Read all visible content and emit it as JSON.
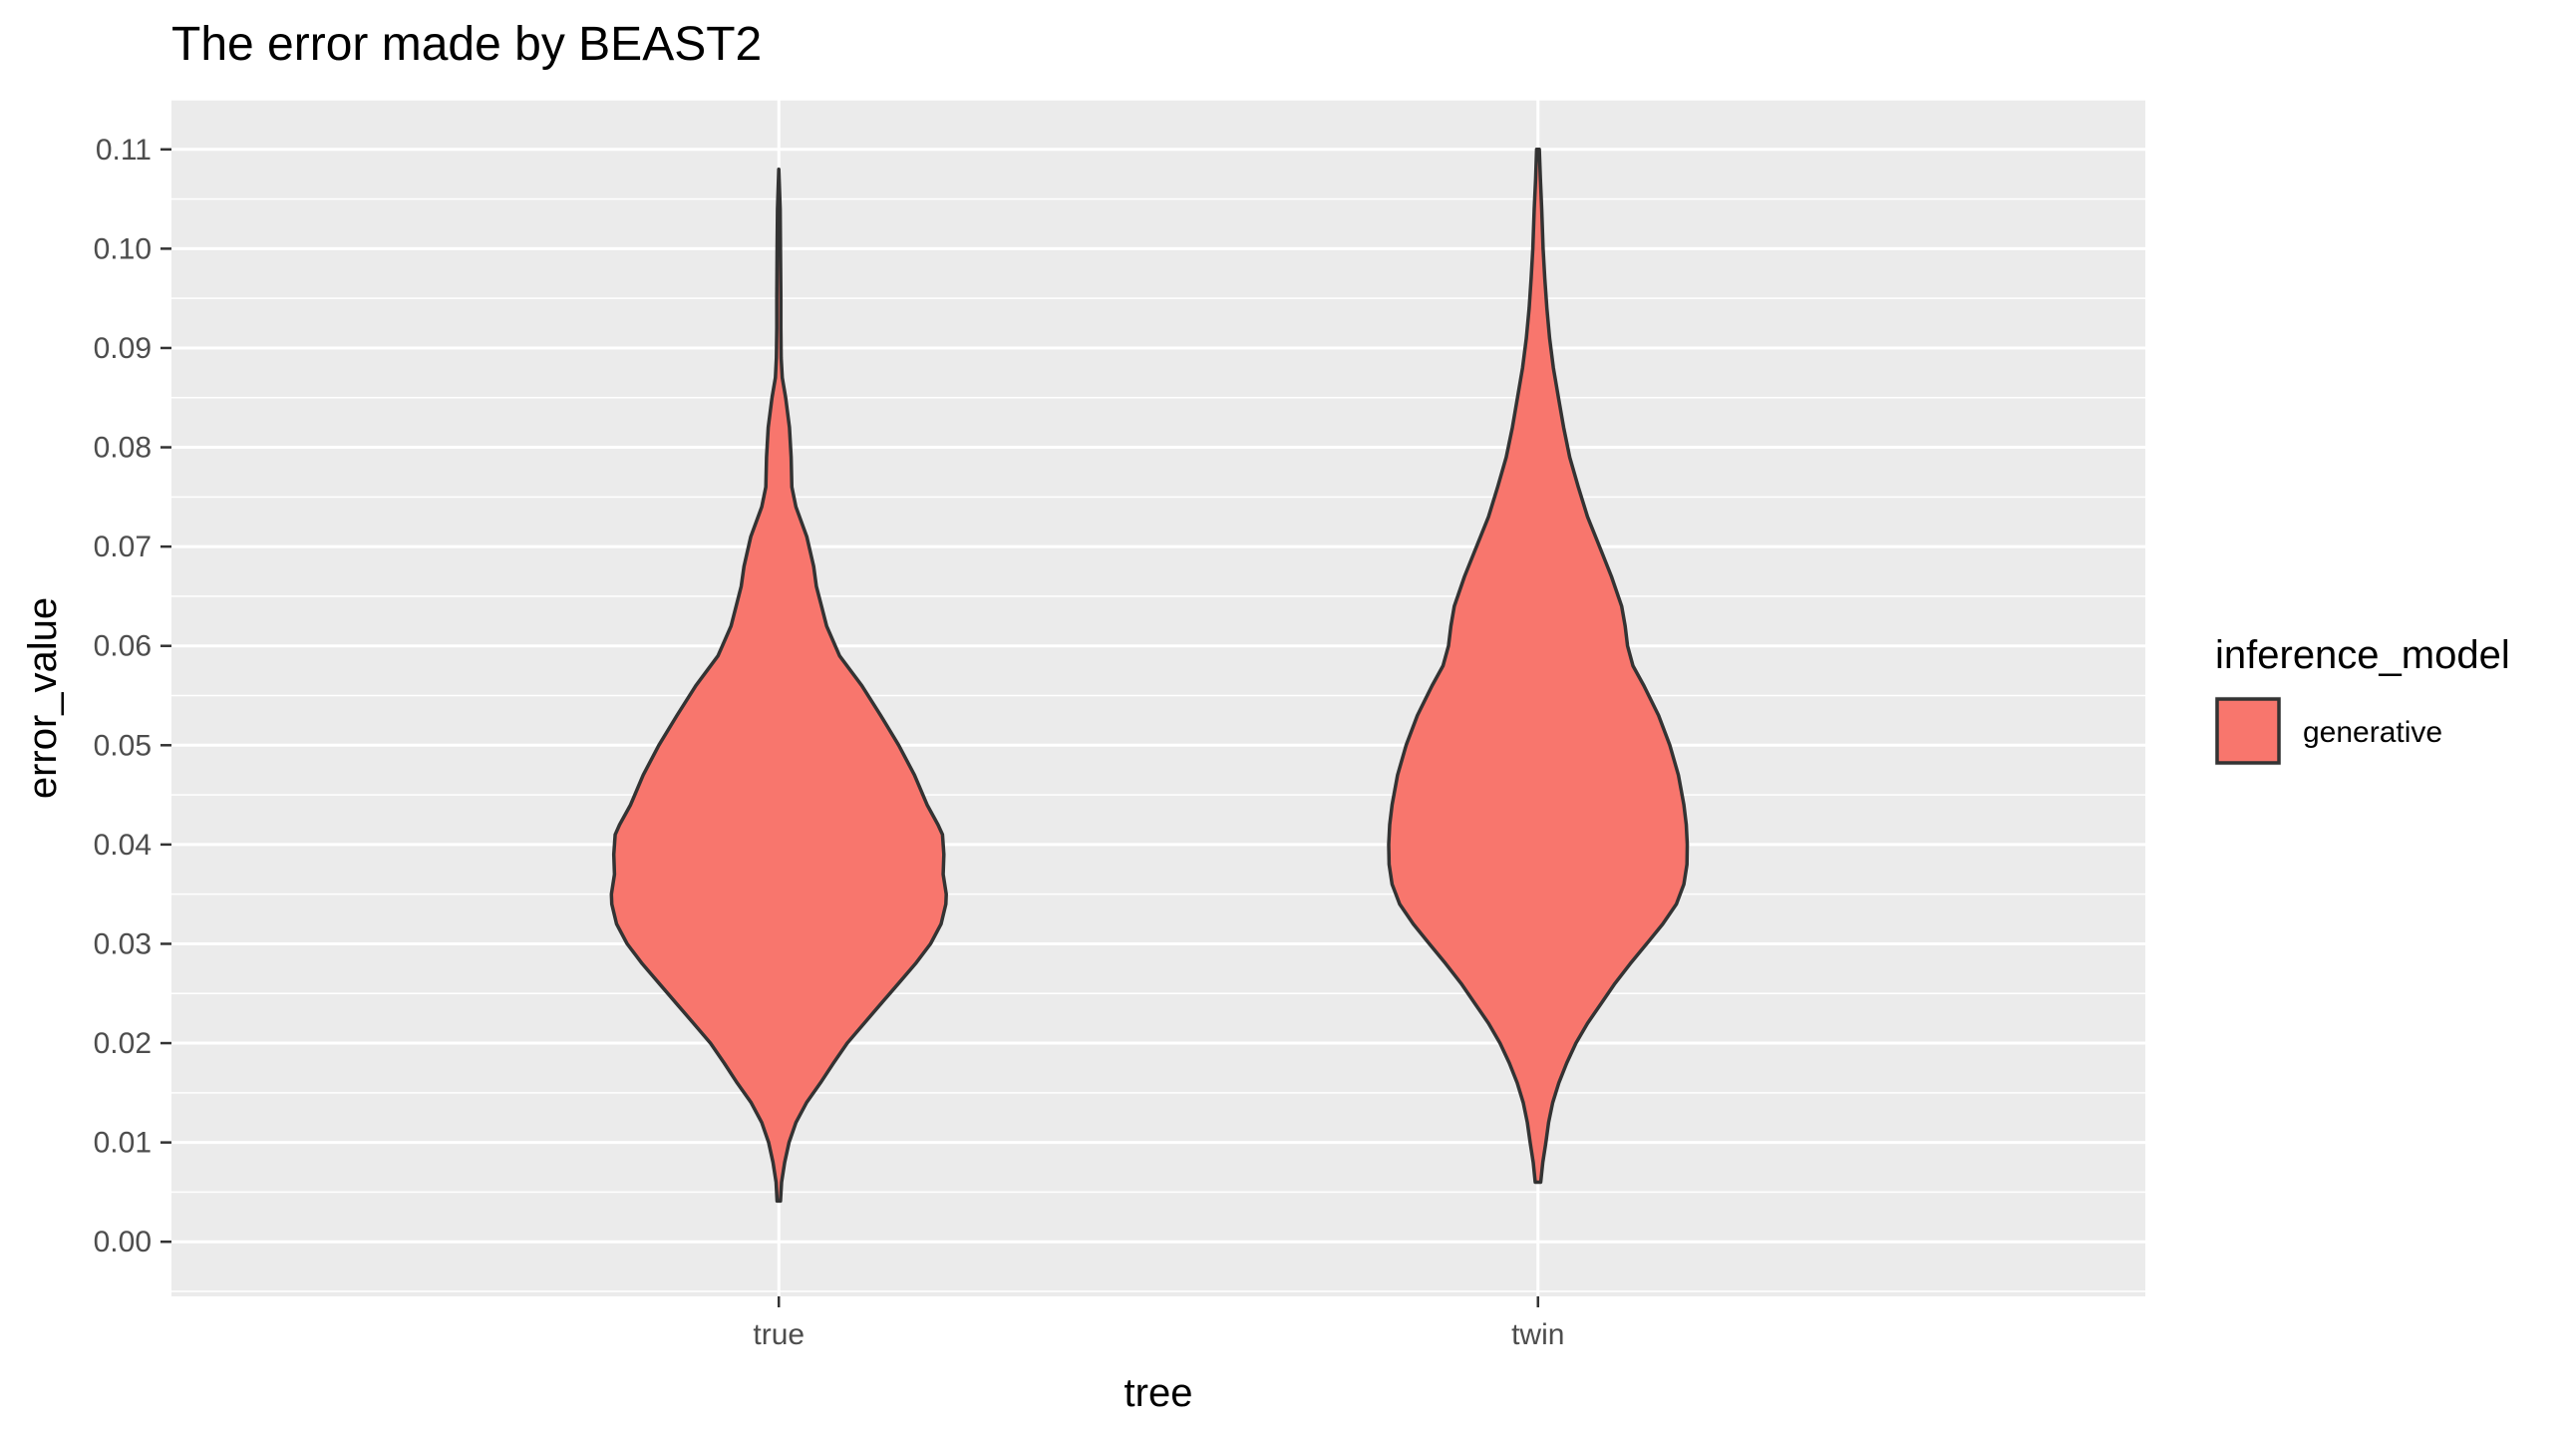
{
  "chart_data": {
    "type": "violin",
    "title": "The error made by BEAST2",
    "xlabel": "tree",
    "ylabel": "error_value",
    "categories": [
      "true",
      "twin"
    ],
    "ylim": [
      -0.0055,
      0.115
    ],
    "yticks": [
      0.0,
      0.01,
      0.02,
      0.03,
      0.04,
      0.05,
      0.06,
      0.07,
      0.08,
      0.09,
      0.1,
      0.11
    ],
    "ytick_labels": [
      "0.00",
      "0.01",
      "0.02",
      "0.03",
      "0.04",
      "0.05",
      "0.06",
      "0.07",
      "0.08",
      "0.09",
      "0.10",
      "0.11"
    ],
    "grid": true,
    "legend": {
      "title": "inference_model",
      "position": "right",
      "entries": [
        {
          "label": "generative",
          "color": "#F8766D"
        }
      ]
    },
    "series": [
      {
        "category": "true",
        "fill": "#F8766D",
        "outline": "#333333",
        "min": 0.0041,
        "max": 0.108,
        "density_profile": [
          [
            0.108,
            0.0
          ],
          [
            0.104,
            0.004
          ],
          [
            0.1,
            0.005
          ],
          [
            0.095,
            0.006
          ],
          [
            0.092,
            0.006
          ],
          [
            0.089,
            0.007
          ],
          [
            0.087,
            0.01
          ],
          [
            0.085,
            0.02
          ],
          [
            0.082,
            0.031
          ],
          [
            0.079,
            0.036
          ],
          [
            0.076,
            0.038
          ],
          [
            0.074,
            0.05
          ],
          [
            0.071,
            0.082
          ],
          [
            0.068,
            0.102
          ],
          [
            0.066,
            0.11
          ],
          [
            0.064,
            0.125
          ],
          [
            0.062,
            0.14
          ],
          [
            0.059,
            0.178
          ],
          [
            0.056,
            0.243
          ],
          [
            0.053,
            0.298
          ],
          [
            0.05,
            0.351
          ],
          [
            0.047,
            0.397
          ],
          [
            0.044,
            0.434
          ],
          [
            0.042,
            0.466
          ],
          [
            0.041,
            0.479
          ],
          [
            0.039,
            0.483
          ],
          [
            0.037,
            0.481
          ],
          [
            0.035,
            0.49
          ],
          [
            0.034,
            0.489
          ],
          [
            0.032,
            0.475
          ],
          [
            0.03,
            0.444
          ],
          [
            0.028,
            0.4
          ],
          [
            0.026,
            0.35
          ],
          [
            0.024,
            0.3
          ],
          [
            0.022,
            0.25
          ],
          [
            0.02,
            0.2
          ],
          [
            0.018,
            0.16
          ],
          [
            0.016,
            0.122
          ],
          [
            0.014,
            0.081
          ],
          [
            0.012,
            0.05
          ],
          [
            0.01,
            0.03
          ],
          [
            0.008,
            0.017
          ],
          [
            0.006,
            0.008
          ],
          [
            0.0041,
            0.005
          ]
        ]
      },
      {
        "category": "twin",
        "fill": "#F8766D",
        "outline": "#333333",
        "min": 0.006,
        "max": 0.11,
        "density_profile": [
          [
            0.11,
            0.004
          ],
          [
            0.107,
            0.007
          ],
          [
            0.104,
            0.011
          ],
          [
            0.1,
            0.015
          ],
          [
            0.097,
            0.02
          ],
          [
            0.094,
            0.026
          ],
          [
            0.091,
            0.034
          ],
          [
            0.088,
            0.045
          ],
          [
            0.085,
            0.06
          ],
          [
            0.082,
            0.075
          ],
          [
            0.079,
            0.093
          ],
          [
            0.076,
            0.118
          ],
          [
            0.073,
            0.145
          ],
          [
            0.07,
            0.18
          ],
          [
            0.067,
            0.215
          ],
          [
            0.064,
            0.245
          ],
          [
            0.062,
            0.255
          ],
          [
            0.06,
            0.262
          ],
          [
            0.058,
            0.278
          ],
          [
            0.056,
            0.31
          ],
          [
            0.053,
            0.353
          ],
          [
            0.05,
            0.386
          ],
          [
            0.047,
            0.411
          ],
          [
            0.044,
            0.427
          ],
          [
            0.042,
            0.434
          ],
          [
            0.04,
            0.437
          ],
          [
            0.038,
            0.436
          ],
          [
            0.036,
            0.427
          ],
          [
            0.034,
            0.405
          ],
          [
            0.032,
            0.365
          ],
          [
            0.03,
            0.318
          ],
          [
            0.028,
            0.27
          ],
          [
            0.026,
            0.225
          ],
          [
            0.024,
            0.185
          ],
          [
            0.022,
            0.145
          ],
          [
            0.02,
            0.111
          ],
          [
            0.018,
            0.084
          ],
          [
            0.016,
            0.061
          ],
          [
            0.014,
            0.043
          ],
          [
            0.012,
            0.031
          ],
          [
            0.01,
            0.023
          ],
          [
            0.008,
            0.014
          ],
          [
            0.006,
            0.008
          ]
        ]
      }
    ]
  }
}
